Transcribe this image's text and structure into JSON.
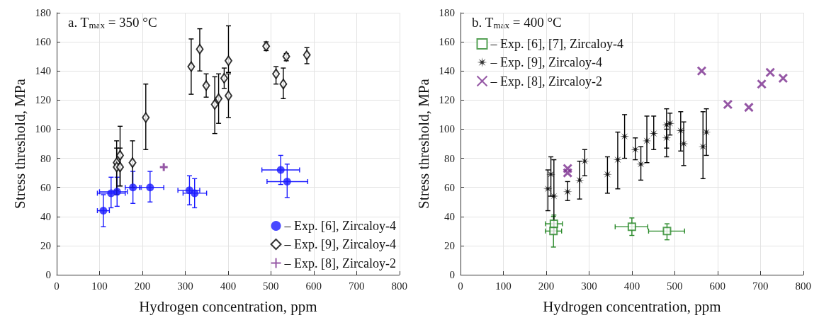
{
  "chart_data": [
    {
      "type": "scatter",
      "xlabel": "Hydrogen concentration, ppm",
      "ylabel": "Stress threshold, MPa",
      "annotations": [
        "a. T$_{max}$ = 350 °C"
      ],
      "xlim": [
        0,
        800
      ],
      "xticks": [
        0,
        100,
        200,
        300,
        400,
        500,
        600,
        700,
        800
      ],
      "ylim": [
        0,
        180
      ],
      "yticks": [
        0,
        20,
        40,
        60,
        80,
        100,
        120,
        140,
        160,
        180
      ],
      "grid": true,
      "legend": "bottom right",
      "series": [
        {
          "name": "– Exp. [6], Zircaloy-4",
          "color": "#1a1aff",
          "marker": "circle",
          "x": [
            109,
            127,
            141,
            178,
            218,
            310,
            322,
            523,
            538
          ],
          "values": [
            44,
            56,
            57,
            60,
            60,
            58,
            56,
            72,
            64
          ],
          "errors": [
            [
              33,
              55
            ],
            [
              46,
              67
            ],
            [
              47,
              67
            ],
            [
              49,
              71
            ],
            [
              50,
              71
            ],
            [
              48,
              68
            ],
            [
              46,
              66
            ],
            [
              62,
              82
            ],
            [
              53,
              76
            ]
          ],
          "xerrors": [
            [
              95,
              123
            ],
            [
              95,
              160
            ],
            [
              100,
              165
            ],
            [
              160,
              197
            ],
            [
              193,
              250
            ],
            [
              283,
              334
            ],
            [
              295,
              350
            ],
            [
              479,
              567
            ],
            [
              491,
              586
            ]
          ]
        },
        {
          "name": "– Exp. [9], Zircaloy-4",
          "color": "#000000",
          "marker": "diamond",
          "x": [
            140,
            140,
            148,
            148,
            177,
            208,
            314,
            334,
            349,
            369,
            378,
            391,
            401,
            401,
            489,
            512,
            529,
            536,
            584
          ],
          "values": [
            77,
            74,
            82,
            74,
            77,
            108,
            143,
            155,
            130,
            117,
            121,
            135,
            147,
            123,
            157,
            138,
            131,
            150,
            151
          ],
          "errors": [
            [
              55,
              92
            ],
            [
              58,
              87
            ],
            [
              61,
              102
            ],
            [
              61,
              87
            ],
            [
              60,
              92
            ],
            [
              86,
              131
            ],
            [
              124,
              162
            ],
            [
              140,
              169
            ],
            [
              122,
              138
            ],
            [
              97,
              136
            ],
            [
              104,
              138
            ],
            [
              128,
              142
            ],
            [
              139,
              171
            ],
            [
              108,
              138
            ],
            [
              154,
              160
            ],
            [
              131,
              143
            ],
            [
              121,
              142
            ],
            [
              147,
              152
            ],
            [
              145,
              156
            ]
          ]
        },
        {
          "name": "– Exp. [8], Zircaloy-2",
          "color": "#7b2d8e",
          "marker": "cross",
          "x": [
            250
          ],
          "values": [
            74
          ]
        }
      ]
    },
    {
      "type": "scatter",
      "xlabel": "Hydrogen concentration, ppm",
      "ylabel": "Stress threshold, MPa",
      "annotations": [
        "b. T$_{max}$ = 400 °C"
      ],
      "xlim": [
        0,
        800
      ],
      "xticks": [
        0,
        100,
        200,
        300,
        400,
        500,
        600,
        700,
        800
      ],
      "ylim": [
        0,
        180
      ],
      "yticks": [
        0,
        20,
        40,
        60,
        80,
        100,
        120,
        140,
        160,
        180
      ],
      "grid": true,
      "legend": "top left",
      "series": [
        {
          "name": "– Exp. [6], [7], Zircaloy-4",
          "color": "#2a8a2a",
          "marker": "square",
          "x": [
            218,
            217,
            400,
            482
          ],
          "values": [
            35,
            30,
            33,
            30
          ],
          "errors": [
            [
              30,
              41
            ],
            [
              19,
              40
            ],
            [
              27,
              39
            ],
            [
              24,
              35
            ]
          ],
          "xerrors": [
            [
              198,
              238
            ],
            [
              198,
              236
            ],
            [
              361,
              437
            ],
            [
              439,
              523
            ]
          ]
        },
        {
          "name": "– Exp. [9], Zircaloy-4",
          "color": "#000000",
          "marker": "star",
          "x": [
            204,
            211,
            218,
            250,
            278,
            290,
            343,
            367,
            383,
            408,
            421,
            435,
            451,
            481,
            481,
            489,
            514,
            521,
            566,
            574
          ],
          "values": [
            59,
            69,
            54,
            57,
            65,
            78,
            69,
            79,
            95,
            86,
            76,
            92,
            97,
            103,
            94,
            104,
            99,
            90,
            88,
            98
          ],
          "errors": [
            [
              44,
              72
            ],
            [
              54,
              81
            ],
            [
              28,
              79
            ],
            [
              51,
              64
            ],
            [
              52,
              78
            ],
            [
              68,
              86
            ],
            [
              56,
              81
            ],
            [
              59,
              98
            ],
            [
              80,
              110
            ],
            [
              79,
              94
            ],
            [
              65,
              88
            ],
            [
              77,
              109
            ],
            [
              86,
              109
            ],
            [
              81,
              114
            ],
            [
              87,
              100
            ],
            [
              96,
              111
            ],
            [
              85,
              112
            ],
            [
              75,
              105
            ],
            [
              66,
              112
            ],
            [
              82,
              114
            ]
          ]
        },
        {
          "name": "– Exp. [8], Zircaloy-2",
          "color": "#7b2d8e",
          "marker": "x",
          "x": [
            250,
            250,
            563,
            624,
            673,
            703,
            723,
            753
          ],
          "values": [
            73,
            70,
            140,
            117,
            115,
            131,
            139,
            135
          ]
        }
      ]
    }
  ]
}
